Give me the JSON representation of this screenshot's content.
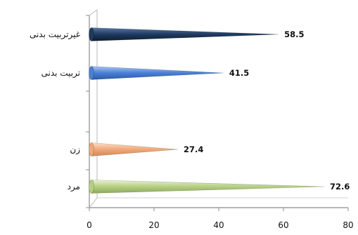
{
  "chart_data": {
    "type": "bar",
    "orientation": "horizontal",
    "bar_shape": "cone",
    "categories": [
      "غیرتربیت بدنی",
      "تربیت بدنی",
      "زن",
      "مرد"
    ],
    "values": [
      58.5,
      41.5,
      27.4,
      72.6
    ],
    "value_labels": [
      "58.5",
      "41.5",
      "27.4",
      "72.6"
    ],
    "colors": [
      "#1f3a5f",
      "#4a7fd4",
      "#f0a878",
      "#b6cf82"
    ],
    "xlim": [
      0,
      80
    ],
    "x_ticks": [
      "0",
      "20",
      "40",
      "60",
      "80"
    ],
    "title": "",
    "xlabel": "",
    "ylabel": "",
    "grid": false,
    "legend": false
  }
}
